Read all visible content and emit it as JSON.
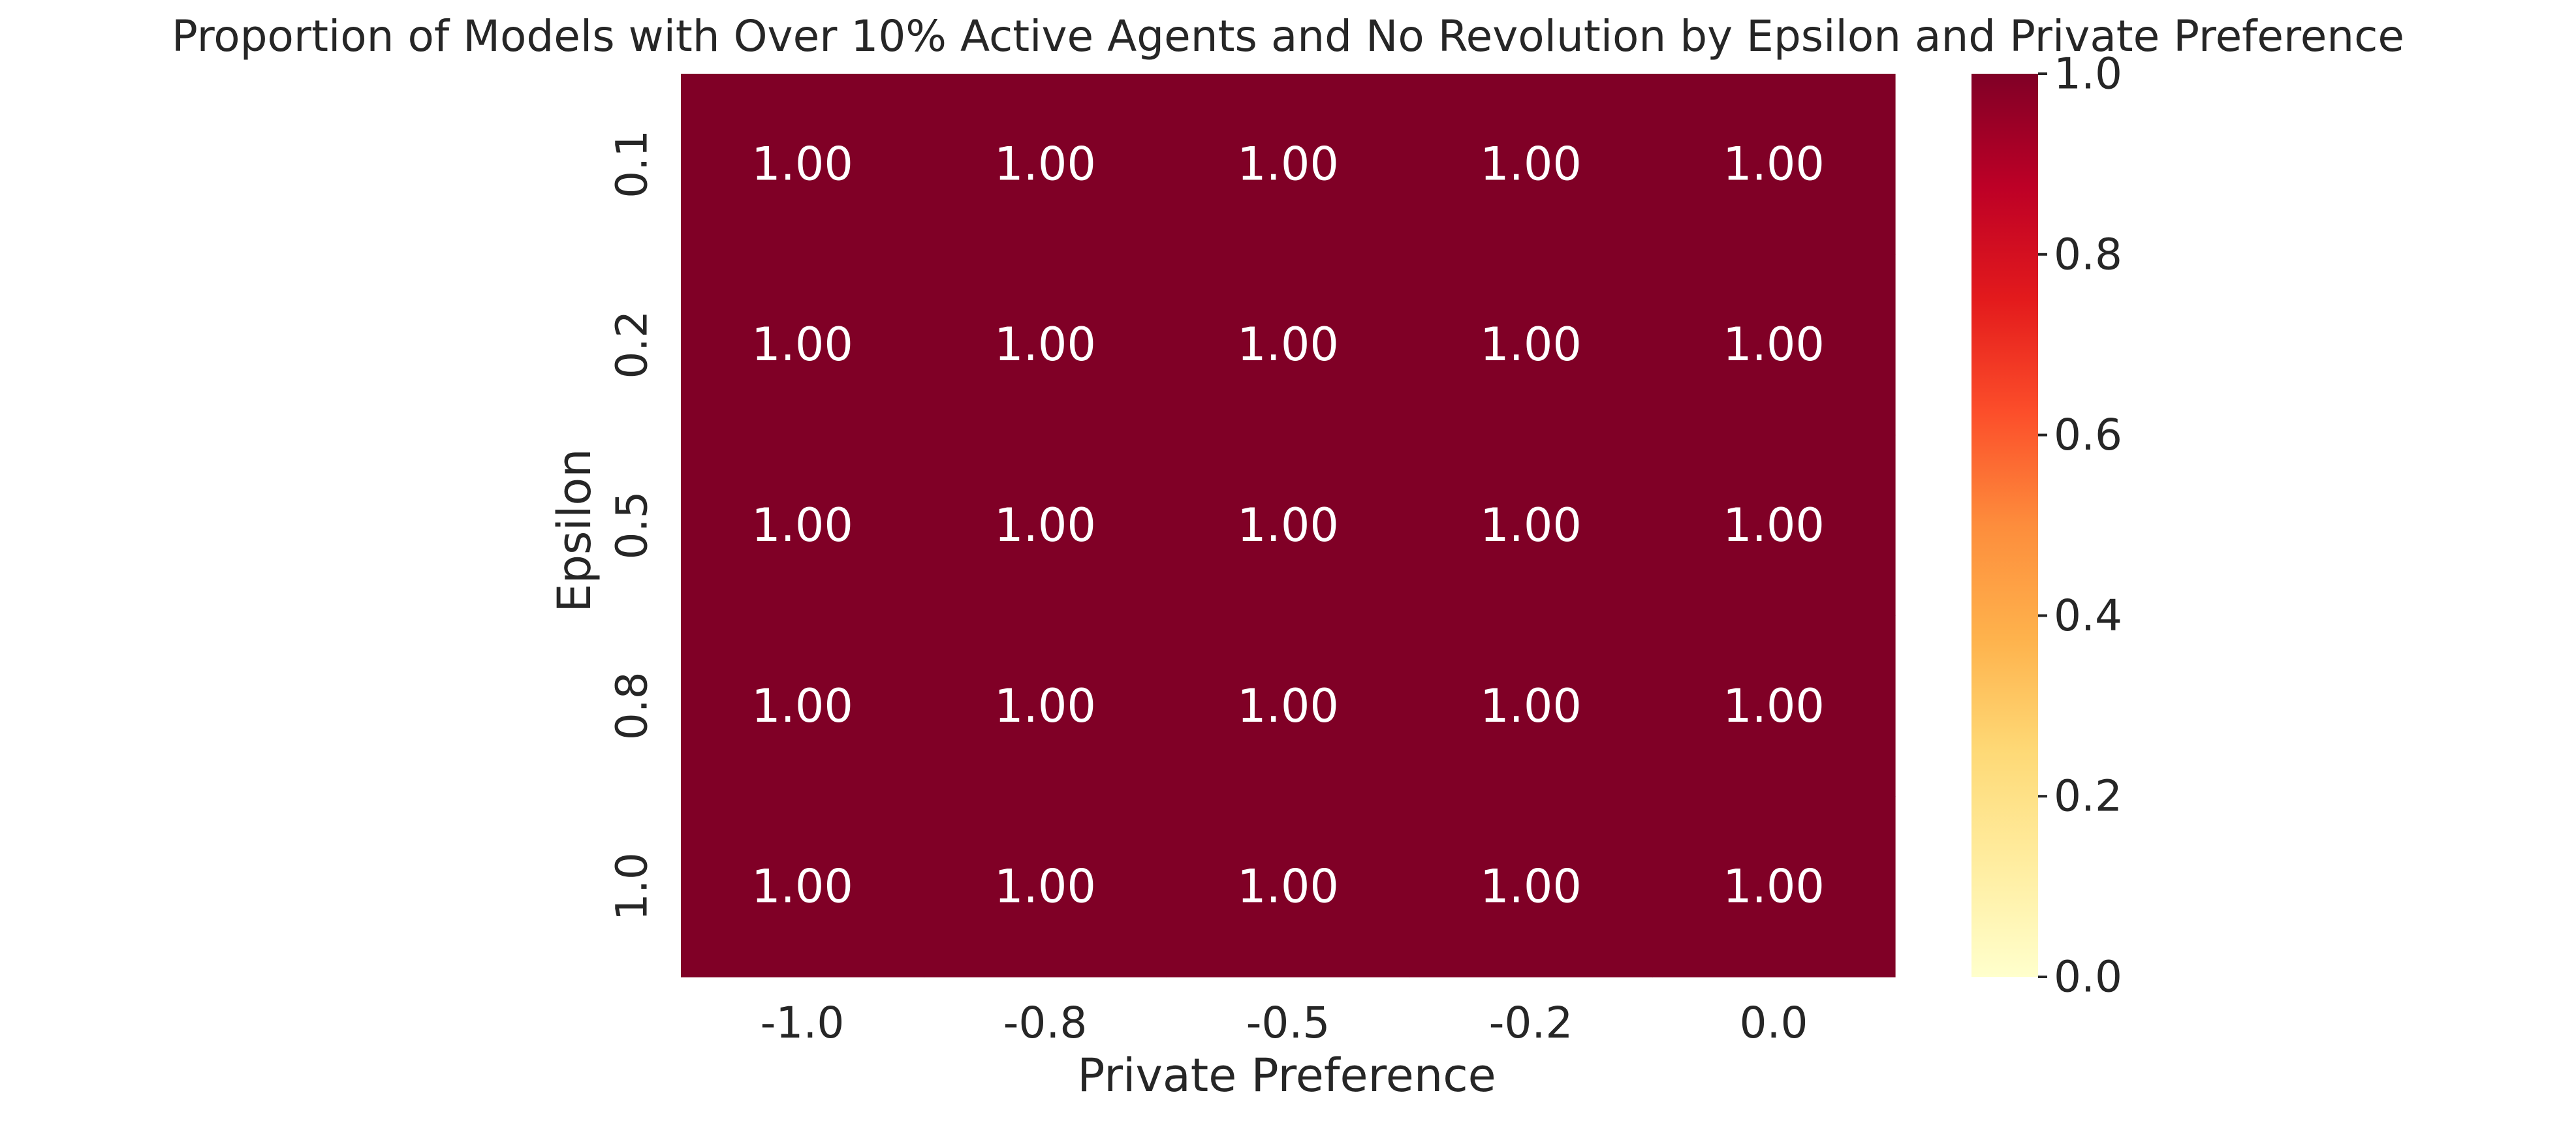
{
  "chart_data": {
    "type": "heatmap",
    "title": "Proportion of Models with Over 10% Active Agents and No Revolution by Epsilon and Private Preference",
    "xlabel": "Private Preference",
    "ylabel": "Epsilon",
    "x_categories": [
      "-1.0",
      "-0.8",
      "-0.5",
      "-0.2",
      "0.0"
    ],
    "y_categories": [
      "0.1",
      "0.2",
      "0.5",
      "0.8",
      "1.0"
    ],
    "values": [
      [
        1.0,
        1.0,
        1.0,
        1.0,
        1.0
      ],
      [
        1.0,
        1.0,
        1.0,
        1.0,
        1.0
      ],
      [
        1.0,
        1.0,
        1.0,
        1.0,
        1.0
      ],
      [
        1.0,
        1.0,
        1.0,
        1.0,
        1.0
      ],
      [
        1.0,
        1.0,
        1.0,
        1.0,
        1.0
      ]
    ],
    "cell_labels": [
      [
        "1.00",
        "1.00",
        "1.00",
        "1.00",
        "1.00"
      ],
      [
        "1.00",
        "1.00",
        "1.00",
        "1.00",
        "1.00"
      ],
      [
        "1.00",
        "1.00",
        "1.00",
        "1.00",
        "1.00"
      ],
      [
        "1.00",
        "1.00",
        "1.00",
        "1.00",
        "1.00"
      ],
      [
        "1.00",
        "1.00",
        "1.00",
        "1.00",
        "1.00"
      ]
    ],
    "colorbar": {
      "colormap": "YlOrRd",
      "range": [
        0.0,
        1.0
      ],
      "ticks": [
        "0.0",
        "0.2",
        "0.4",
        "0.6",
        "0.8",
        "1.0"
      ]
    },
    "grid": false
  },
  "colors": {
    "cell_fill": "#800026",
    "annotation_text": "#ffffff",
    "text": "#262626",
    "colormap_stops": [
      "#ffffcc",
      "#ffeda0",
      "#fed976",
      "#feb24c",
      "#fd8d3c",
      "#fc4e2a",
      "#e31a1c",
      "#bd0026",
      "#800026"
    ]
  }
}
